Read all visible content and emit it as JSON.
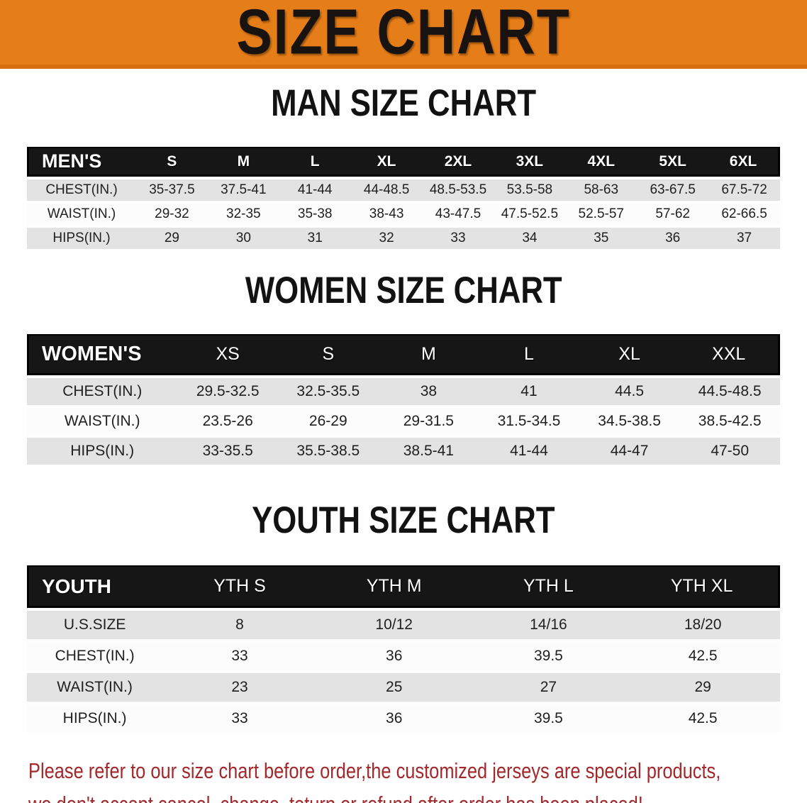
{
  "banner": {
    "title": "SIZE CHART"
  },
  "sections": [
    {
      "heading": "MAN SIZE CHART",
      "table": {
        "label": "MEN'S",
        "columns": [
          "S",
          "M",
          "L",
          "XL",
          "2XL",
          "3XL",
          "4XL",
          "5XL",
          "6XL"
        ],
        "rows": [
          {
            "label": "CHEST(IN.)",
            "values": [
              "35-37.5",
              "37.5-41",
              "41-44",
              "44-48.5",
              "48.5-53.5",
              "53.5-58",
              "58-63",
              "63-67.5",
              "67.5-72"
            ]
          },
          {
            "label": "WAIST(IN.)",
            "values": [
              "29-32",
              "32-35",
              "35-38",
              "38-43",
              "43-47.5",
              "47.5-52.5",
              "52.5-57",
              "57-62",
              "62-66.5"
            ]
          },
          {
            "label": "HIPS(IN.)",
            "values": [
              "29",
              "30",
              "31",
              "32",
              "33",
              "34",
              "35",
              "36",
              "37"
            ]
          }
        ]
      }
    },
    {
      "heading": "WOMEN SIZE CHART",
      "table": {
        "label": "WOMEN'S",
        "columns": [
          "XS",
          "S",
          "M",
          "L",
          "XL",
          "XXL"
        ],
        "rows": [
          {
            "label": "CHEST(IN.)",
            "values": [
              "29.5-32.5",
              "32.5-35.5",
              "38",
              "41",
              "44.5",
              "44.5-48.5"
            ]
          },
          {
            "label": "WAIST(IN.)",
            "values": [
              "23.5-26",
              "26-29",
              "29-31.5",
              "31.5-34.5",
              "34.5-38.5",
              "38.5-42.5"
            ]
          },
          {
            "label": "HIPS(IN.)",
            "values": [
              "33-35.5",
              "35.5-38.5",
              "38.5-41",
              "41-44",
              "44-47",
              "47-50"
            ]
          }
        ]
      }
    },
    {
      "heading": "YOUTH SIZE CHART",
      "table": {
        "label": "YOUTH",
        "columns": [
          "YTH S",
          "YTH M",
          "YTH L",
          "YTH XL"
        ],
        "rows": [
          {
            "label": "U.S.SIZE",
            "values": [
              "8",
              "10/12",
              "14/16",
              "18/20"
            ]
          },
          {
            "label": "CHEST(IN.)",
            "values": [
              "33",
              "36",
              "39.5",
              "42.5"
            ]
          },
          {
            "label": "WAIST(IN.)",
            "values": [
              "23",
              "25",
              "27",
              "29"
            ]
          },
          {
            "label": "HIPS(IN.)",
            "values": [
              "33",
              "36",
              "39.5",
              "42.5"
            ]
          }
        ]
      }
    }
  ],
  "footer": {
    "line1": "Please refer to our size chart before order,the customized jerseys are special products,",
    "line2": "we don't accept cancel, change, teturn or refund after order has been placed!"
  },
  "colors": {
    "banner_bg": "#e57d18",
    "banner_edge": "#d8700f",
    "header_bar_bg": "#161616",
    "row_stripe": "#e3e3e3",
    "text_dark": "#1f1f1f",
    "notice_red": "#a3282b"
  }
}
